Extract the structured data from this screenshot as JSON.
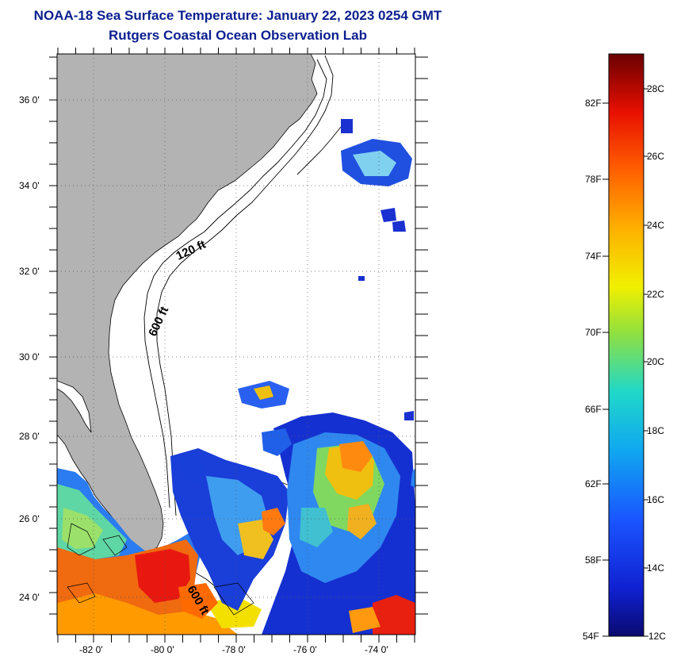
{
  "title": {
    "line1": "NOAA-18 Sea Surface Temperature:  January 22, 2023 0254 GMT",
    "line2": "Rutgers Coastal Ocean Observation Lab"
  },
  "colors": {
    "title": "#0b1f8f",
    "land": "#b3b3b3",
    "ocean": "#ffffff"
  },
  "map": {
    "lon_range": [
      -83,
      -73
    ],
    "lat_range": [
      23,
      37
    ],
    "lat_labels": [
      "36 0'",
      "34 0'",
      "32 0'",
      "30 0'",
      "28 0'",
      "26 0'",
      "24 0'"
    ],
    "lon_labels": [
      "-82 0'",
      "-80 0'",
      "-78 0'",
      "-76 0'",
      "-74 0'"
    ],
    "contour_labels": [
      "120 ft",
      "600 ft",
      "600 ft"
    ]
  },
  "colorbar": {
    "fahrenheit": [
      "82F",
      "78F",
      "74F",
      "70F",
      "66F",
      "62F",
      "58F",
      "54F"
    ],
    "celsius": [
      "28C",
      "26C",
      "24C",
      "22C",
      "20C",
      "18C",
      "16C",
      "14C",
      "12C"
    ]
  }
}
